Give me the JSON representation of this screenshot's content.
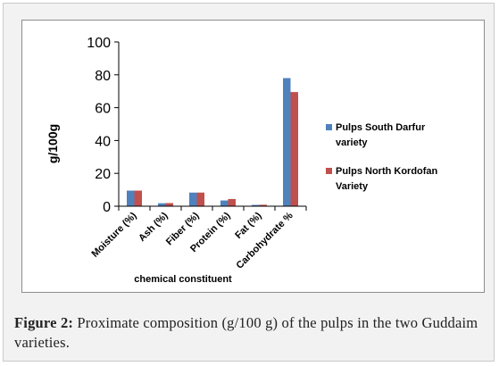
{
  "chart_data": {
    "type": "bar",
    "categories": [
      "Moisture (%)",
      "Ash (%)",
      "Fiber (%)",
      "Protein (%)",
      "Fat (%)",
      "Carbohydrate %"
    ],
    "series": [
      {
        "name": "Pulps South Darfur variety",
        "name_lines": [
          "Pulps South Darfur",
          "variety"
        ],
        "values": [
          9.5,
          1.8,
          8.3,
          3.5,
          0.8,
          78.0
        ],
        "color": "#4f81bd"
      },
      {
        "name": "Pulps North Kordofan Variety",
        "name_lines": [
          "Pulps North Kordofan",
          "Variety"
        ],
        "values": [
          9.5,
          1.9,
          8.3,
          4.4,
          0.9,
          69.5
        ],
        "color": "#c0504d"
      }
    ],
    "ylim": [
      0,
      100
    ],
    "yticks": [
      0,
      20,
      40,
      60,
      80,
      100
    ],
    "ylabel": "g/100g",
    "xlabel": "chemical constituent",
    "grid": false,
    "legend": "right"
  },
  "caption": {
    "label": "Figure 2:",
    "text": " Proximate composition (g/100 g) of the pulps in the two Guddaim varieties."
  },
  "colors": {
    "frame_background": "#f2f2f2",
    "plot_background": "#ffffff",
    "axis": "#000000"
  }
}
